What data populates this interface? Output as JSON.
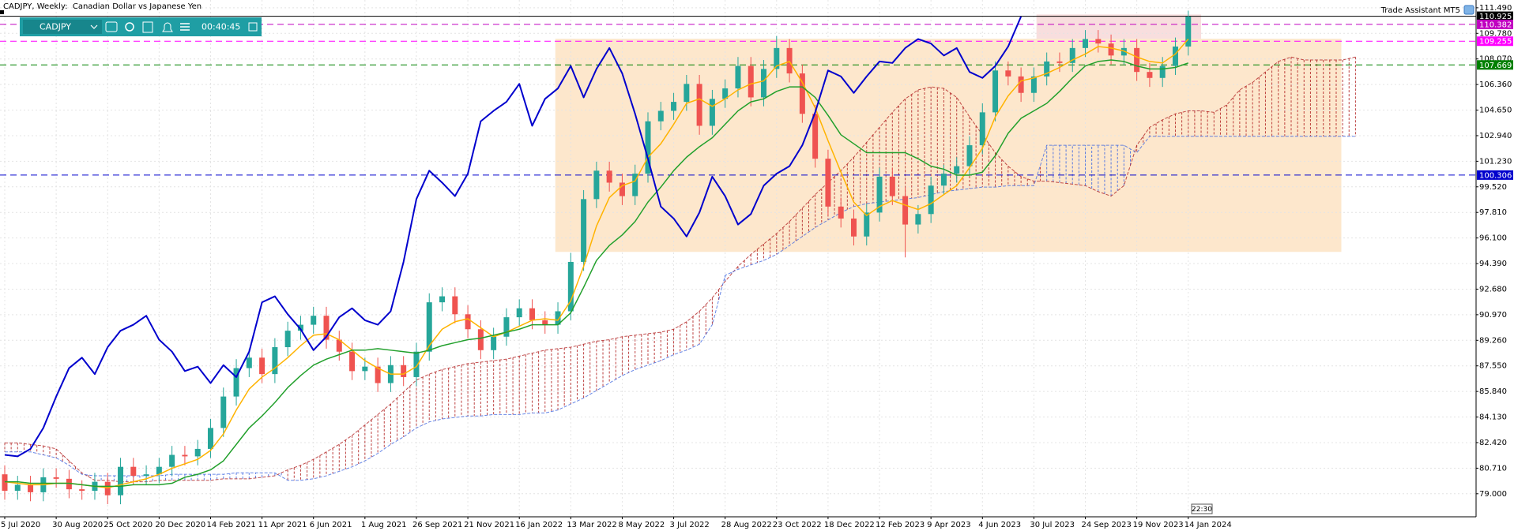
{
  "chart_data": {
    "type": "candlestick",
    "title": "CADJPY, Weekly:  Canadian Dollar vs Japanese Yen",
    "categories": [
      "5 Jul 2020",
      null,
      null,
      null,
      "30 Aug 2020",
      null,
      null,
      null,
      "25 Oct 2020",
      null,
      null,
      null,
      "20 Dec 2020",
      null,
      null,
      null,
      "14 Feb 2021",
      null,
      null,
      null,
      "11 Apr 2021",
      null,
      null,
      null,
      "6 Jun 2021",
      null,
      null,
      null,
      "1 Aug 2021",
      null,
      null,
      null,
      "26 Sep 2021",
      null,
      null,
      null,
      "21 Nov 2021",
      null,
      null,
      null,
      "16 Jan 2022",
      null,
      null,
      null,
      "13 Mar 2022",
      null,
      null,
      null,
      "8 May 2022",
      null,
      null,
      null,
      "3 Jul 2022",
      null,
      null,
      null,
      "28 Aug 2022",
      null,
      null,
      null,
      "23 Oct 2022",
      null,
      null,
      null,
      "18 Dec 2022",
      null,
      null,
      null,
      "12 Feb 2023",
      null,
      null,
      null,
      "9 Apr 2023",
      null,
      null,
      null,
      "4 Jun 2023",
      null,
      null,
      null,
      "30 Jul 2023",
      null,
      null,
      null,
      "24 Sep 2023",
      null,
      null,
      null,
      "19 Nov 2023",
      null,
      null,
      null,
      "14 Jan 2024",
      null,
      null,
      null,
      null,
      null,
      null,
      null,
      null,
      null,
      null,
      null,
      null,
      null
    ],
    "open": [
      80.3,
      79.2,
      79.6,
      79.1,
      80.1,
      80.0,
      79.3,
      79.2,
      79.8,
      78.9,
      80.8,
      80.2,
      80.3,
      80.8,
      81.6,
      81.5,
      82.0,
      83.4,
      85.5,
      87.4,
      88.1,
      87.0,
      88.8,
      89.9,
      90.3,
      90.9,
      89.3,
      88.5,
      87.2,
      87.5,
      86.4,
      87.6,
      86.8,
      88.5,
      91.8,
      92.2,
      91.0,
      90.0,
      88.6,
      89.5,
      90.8,
      91.4,
      90.6,
      90.3,
      91.2,
      94.5,
      98.7,
      100.6,
      99.8,
      98.9,
      100.4,
      103.9,
      104.6,
      105.2,
      106.4,
      103.6,
      105.4,
      106.1,
      107.6,
      105.5,
      107.4,
      108.8,
      107.1,
      104.4,
      101.4,
      98.2,
      97.4,
      96.2,
      97.8,
      100.2,
      98.9,
      97.0,
      97.7,
      99.6,
      100.4,
      100.9,
      102.3,
      104.5,
      107.3,
      106.9,
      105.8,
      106.9,
      107.9,
      107.8,
      108.8,
      109.4,
      109.1,
      108.3,
      108.8,
      107.2,
      106.8,
      107.6,
      108.9,
      null,
      null,
      null,
      null,
      null,
      null,
      null,
      null,
      null,
      null,
      null,
      null,
      null
    ],
    "high": [
      80.9,
      80.2,
      80.2,
      80.7,
      80.7,
      80.6,
      79.9,
      80.4,
      80.4,
      81.4,
      81.4,
      80.9,
      81.4,
      82.2,
      82.2,
      82.6,
      84.0,
      86.1,
      88.0,
      88.7,
      88.7,
      89.4,
      90.5,
      90.9,
      91.5,
      91.5,
      89.9,
      89.1,
      88.1,
      88.1,
      88.2,
      88.2,
      89.1,
      92.4,
      92.8,
      92.8,
      91.6,
      90.6,
      90.1,
      91.4,
      92.0,
      92.0,
      91.2,
      91.8,
      95.1,
      99.3,
      101.2,
      101.2,
      100.4,
      101.0,
      104.5,
      105.2,
      105.8,
      107.0,
      107.0,
      106.0,
      106.7,
      108.2,
      108.2,
      108.0,
      109.6,
      109.4,
      107.7,
      105.0,
      102.0,
      98.8,
      98.0,
      98.4,
      100.8,
      100.8,
      99.5,
      98.3,
      100.2,
      101.0,
      101.5,
      102.9,
      105.1,
      107.9,
      107.9,
      107.5,
      107.5,
      108.5,
      108.5,
      109.4,
      110.0,
      110.0,
      109.7,
      109.4,
      109.4,
      107.8,
      108.2,
      109.5,
      111.3,
      null,
      null,
      null,
      null,
      null,
      null,
      null,
      null,
      null,
      null,
      null,
      null,
      null
    ],
    "low": [
      78.6,
      78.6,
      78.5,
      78.5,
      79.4,
      78.7,
      78.6,
      78.6,
      78.3,
      78.3,
      79.6,
      79.6,
      79.7,
      80.2,
      80.9,
      80.9,
      81.4,
      82.8,
      84.9,
      86.8,
      86.4,
      86.4,
      88.2,
      89.3,
      89.7,
      88.7,
      87.9,
      86.6,
      86.6,
      85.8,
      85.8,
      86.2,
      86.2,
      87.9,
      91.2,
      90.4,
      89.4,
      88.0,
      88.0,
      88.9,
      90.2,
      90.0,
      89.7,
      89.7,
      90.6,
      93.9,
      98.1,
      99.2,
      98.3,
      98.3,
      99.8,
      103.3,
      104.0,
      104.6,
      103.0,
      103.0,
      104.8,
      105.5,
      104.9,
      104.9,
      106.8,
      106.5,
      103.8,
      100.8,
      97.6,
      96.8,
      95.6,
      95.6,
      97.2,
      98.3,
      94.8,
      96.4,
      97.1,
      99.0,
      99.8,
      100.3,
      101.7,
      103.9,
      106.3,
      105.2,
      105.2,
      106.3,
      107.2,
      107.2,
      108.2,
      108.5,
      107.7,
      107.7,
      106.6,
      106.2,
      106.2,
      107.0,
      108.3,
      null,
      null,
      null,
      null,
      null,
      null,
      null,
      null,
      null,
      null,
      null,
      null,
      null
    ],
    "close": [
      79.2,
      79.6,
      79.1,
      80.1,
      80.0,
      79.3,
      79.2,
      79.8,
      78.9,
      80.8,
      80.2,
      80.3,
      80.8,
      81.6,
      81.5,
      82.0,
      83.4,
      85.5,
      87.4,
      88.1,
      87.0,
      88.8,
      89.9,
      90.3,
      90.9,
      89.3,
      88.5,
      87.2,
      87.5,
      86.4,
      87.6,
      86.8,
      88.5,
      91.8,
      92.2,
      91.0,
      90.0,
      88.6,
      89.5,
      90.8,
      91.4,
      90.6,
      90.3,
      91.2,
      94.5,
      98.7,
      100.6,
      99.8,
      98.9,
      100.4,
      103.9,
      104.6,
      105.2,
      106.4,
      103.6,
      105.4,
      106.1,
      107.6,
      105.5,
      107.4,
      108.8,
      107.1,
      104.4,
      101.4,
      98.2,
      97.4,
      96.2,
      97.8,
      100.2,
      98.9,
      97.0,
      97.7,
      99.6,
      100.4,
      100.9,
      102.3,
      104.5,
      107.3,
      106.9,
      105.8,
      106.9,
      107.9,
      107.8,
      108.8,
      109.4,
      109.1,
      108.3,
      108.8,
      107.2,
      106.8,
      107.6,
      108.9,
      110.9,
      null,
      null,
      null,
      null,
      null,
      null,
      null,
      null,
      null,
      null,
      null,
      null,
      null
    ],
    "up_color": "#26a69a",
    "down_color": "#ef5350",
    "lines": [
      {
        "color": "#ffb300",
        "width": 1.5,
        "values": [
          79.8,
          79.7,
          79.6,
          79.6,
          79.7,
          79.7,
          79.6,
          79.5,
          79.4,
          79.6,
          79.8,
          80.0,
          80.3,
          80.7,
          81.0,
          81.3,
          81.9,
          83.0,
          84.6,
          86.0,
          86.8,
          87.4,
          88.1,
          88.9,
          89.6,
          89.7,
          89.3,
          88.6,
          87.9,
          87.4,
          87.0,
          87.0,
          87.5,
          88.9,
          90.0,
          90.5,
          90.7,
          90.1,
          89.5,
          89.8,
          90.2,
          90.6,
          90.7,
          90.6,
          91.9,
          94.2,
          96.9,
          98.8,
          99.6,
          99.9,
          101.5,
          102.4,
          103.7,
          105.1,
          105.4,
          104.9,
          105.4,
          106.0,
          106.4,
          106.6,
          107.6,
          107.9,
          106.5,
          104.8,
          102.6,
          100.5,
          98.5,
          97.6,
          98.2,
          98.6,
          98.3,
          98.0,
          98.4,
          99.0,
          99.6,
          100.8,
          102.1,
          104.2,
          105.6,
          106.6,
          106.8,
          107.1,
          107.5,
          108.0,
          108.4,
          108.9,
          108.8,
          108.6,
          108.2,
          107.9,
          107.8,
          108.4,
          109.4,
          null,
          null,
          null,
          null,
          null,
          null,
          null,
          null,
          null,
          null,
          null,
          null,
          null
        ]
      },
      {
        "color": "#22a02c",
        "width": 1.5,
        "values": [
          79.8,
          79.8,
          79.7,
          79.7,
          79.7,
          79.7,
          79.6,
          79.5,
          79.5,
          79.5,
          79.6,
          79.6,
          79.6,
          79.7,
          80.1,
          80.3,
          80.6,
          81.2,
          82.3,
          83.4,
          84.2,
          85.1,
          86.1,
          86.9,
          87.6,
          88.0,
          88.3,
          88.6,
          88.6,
          88.7,
          88.6,
          88.5,
          88.4,
          88.6,
          88.9,
          89.1,
          89.3,
          89.4,
          89.6,
          89.8,
          90.0,
          90.3,
          90.3,
          90.3,
          91.1,
          92.8,
          94.6,
          95.6,
          96.3,
          97.2,
          98.5,
          99.5,
          100.6,
          101.5,
          102.2,
          102.8,
          103.7,
          104.6,
          105.2,
          105.4,
          105.9,
          106.2,
          106.2,
          105.5,
          104.3,
          103.0,
          102.4,
          101.8,
          101.8,
          101.8,
          101.8,
          101.4,
          100.9,
          100.7,
          100.3,
          100.3,
          100.5,
          101.6,
          103.1,
          104.1,
          104.6,
          105.1,
          105.9,
          106.8,
          107.6,
          107.9,
          108.0,
          107.9,
          107.6,
          107.4,
          107.4,
          107.5,
          107.8,
          null,
          null,
          null,
          null,
          null,
          null,
          null,
          null,
          null,
          null,
          null,
          null,
          null
        ]
      },
      {
        "color": "#0000cd",
        "width": 2,
        "values": [
          81.6,
          81.5,
          82.0,
          83.4,
          85.5,
          87.4,
          88.1,
          87.0,
          88.8,
          89.9,
          90.3,
          90.9,
          89.3,
          88.5,
          87.2,
          87.5,
          86.4,
          87.6,
          86.8,
          88.5,
          91.8,
          92.2,
          91.0,
          90.0,
          88.6,
          89.5,
          90.8,
          91.4,
          90.6,
          90.3,
          91.2,
          94.5,
          98.7,
          100.6,
          99.8,
          98.9,
          100.4,
          103.9,
          104.6,
          105.2,
          106.4,
          103.6,
          105.4,
          106.1,
          107.6,
          105.5,
          107.4,
          108.8,
          107.1,
          104.4,
          101.4,
          98.2,
          97.4,
          96.2,
          97.8,
          100.2,
          98.9,
          97.0,
          97.7,
          99.6,
          100.4,
          100.9,
          102.3,
          104.5,
          107.3,
          106.9,
          105.8,
          106.9,
          107.9,
          107.8,
          108.8,
          109.4,
          109.1,
          108.3,
          108.8,
          107.2,
          106.8,
          107.6,
          108.9,
          110.9,
          null,
          null,
          null,
          null,
          null,
          null,
          null,
          null,
          null,
          null,
          null,
          null,
          null,
          null,
          null,
          null,
          null,
          null,
          null,
          null,
          null,
          null,
          null,
          null,
          null,
          null
        ]
      }
    ],
    "cloud": {
      "span_a": [
        82.4,
        82.4,
        82.3,
        82.2,
        82.0,
        81.2,
        80.4,
        79.9,
        79.9,
        79.8,
        79.8,
        79.8,
        79.9,
        79.9,
        79.9,
        79.9,
        79.9,
        80.0,
        80.0,
        80.0,
        80.1,
        80.2,
        80.6,
        80.9,
        81.3,
        81.8,
        82.3,
        82.9,
        83.6,
        84.3,
        85.0,
        85.8,
        86.6,
        87.0,
        87.3,
        87.5,
        87.7,
        87.8,
        87.9,
        88.0,
        88.2,
        88.4,
        88.6,
        88.7,
        88.8,
        89.0,
        89.2,
        89.3,
        89.5,
        89.6,
        89.7,
        89.8,
        90.0,
        90.5,
        91.2,
        92.1,
        93.2,
        94.2,
        95.0,
        95.7,
        96.4,
        97.2,
        98.1,
        99.0,
        99.8,
        100.6,
        101.5,
        102.5,
        103.5,
        104.5,
        105.4,
        106.0,
        106.2,
        106.1,
        105.5,
        104.2,
        103.0,
        101.8,
        100.9,
        100.2,
        99.9,
        99.9,
        99.8,
        99.7,
        99.6,
        99.2,
        98.9,
        99.6,
        102.3,
        103.5,
        104.0,
        104.4,
        104.6,
        104.6,
        104.5,
        105.0,
        106.0,
        106.5,
        107.2,
        107.9,
        108.2,
        108.0,
        108.0,
        108.0,
        108.0,
        108.2
      ],
      "span_b": [
        81.8,
        81.8,
        81.8,
        81.6,
        81.4,
        80.9,
        80.3,
        80.2,
        80.2,
        80.2,
        80.2,
        80.2,
        80.2,
        80.3,
        80.3,
        80.3,
        80.3,
        80.3,
        80.4,
        80.4,
        80.4,
        80.4,
        79.9,
        79.9,
        80.0,
        80.2,
        80.5,
        80.8,
        81.2,
        81.7,
        82.3,
        82.8,
        83.4,
        83.8,
        84.0,
        84.1,
        84.2,
        84.2,
        84.3,
        84.3,
        84.3,
        84.4,
        84.4,
        84.6,
        85.0,
        85.4,
        85.9,
        86.4,
        86.9,
        87.3,
        87.6,
        87.9,
        88.3,
        88.6,
        89.0,
        90.3,
        93.6,
        94.0,
        94.3,
        94.6,
        95.0,
        95.6,
        96.2,
        96.8,
        97.3,
        97.8,
        98.2,
        98.4,
        98.5,
        98.6,
        98.7,
        98.8,
        99.0,
        99.2,
        99.3,
        99.4,
        99.5,
        99.5,
        99.6,
        99.6,
        99.6,
        102.3,
        102.3,
        102.3,
        102.3,
        102.3,
        102.3,
        102.3,
        101.8,
        102.9,
        102.9,
        102.9,
        102.9,
        102.9,
        102.9,
        102.9,
        102.9,
        102.9,
        102.9,
        102.9,
        102.9,
        102.9,
        102.9,
        102.9,
        102.9,
        102.9
      ],
      "up_color": "#b22222",
      "down_color": "#4169e1"
    },
    "levels": [
      {
        "value": 110.925,
        "color": "#000000",
        "style": "solid"
      },
      {
        "value": 110.382,
        "color": "#c000c0",
        "style": "dashed"
      },
      {
        "value": 109.255,
        "color": "#ff00ff",
        "style": "dashed"
      },
      {
        "value": 107.669,
        "color": "#008000",
        "style": "dashed"
      },
      {
        "value": 100.306,
        "color": "#0000cd",
        "style": "dashed"
      }
    ],
    "zones": [
      {
        "x": [
          42.8,
          103.9
        ],
        "y": [
          95.17,
          109.42
        ],
        "color": "#fde7cc"
      },
      {
        "x": [
          80.2,
          93.0
        ],
        "y": [
          109.42,
          111.04
        ],
        "color": "#f8dede"
      }
    ],
    "ylim": [
      77.46,
      112.01
    ],
    "yticks": [
      {
        "value": 111.49,
        "label": "111.490"
      },
      {
        "value": 109.78,
        "label": "109.780"
      },
      {
        "value": 108.07,
        "label": "108.070"
      },
      {
        "value": 106.36,
        "label": "106.360"
      },
      {
        "value": 104.65,
        "label": "104.650"
      },
      {
        "value": 102.94,
        "label": "102.940"
      },
      {
        "value": 101.23,
        "label": "101.230"
      },
      {
        "value": 99.52,
        "label": "99.520"
      },
      {
        "value": 97.81,
        "label": "97.810"
      },
      {
        "value": 96.1,
        "label": "96.100"
      },
      {
        "value": 94.39,
        "label": "94.390"
      },
      {
        "value": 92.68,
        "label": "92.680"
      },
      {
        "value": 90.97,
        "label": "90.970"
      },
      {
        "value": 89.26,
        "label": "89.260"
      },
      {
        "value": 87.55,
        "label": "87.550"
      },
      {
        "value": 85.84,
        "label": "85.840"
      },
      {
        "value": 84.13,
        "label": "84.130"
      },
      {
        "value": 82.42,
        "label": "82.420"
      },
      {
        "value": 80.71,
        "label": "80.710"
      },
      {
        "value": 79,
        "label": "79.000"
      }
    ],
    "grid": true,
    "annotations": [
      "Trade Assistant MT5",
      "22:30"
    ]
  },
  "toolbar": {
    "symbol": "CADJPY",
    "timer": "00:40:45"
  }
}
